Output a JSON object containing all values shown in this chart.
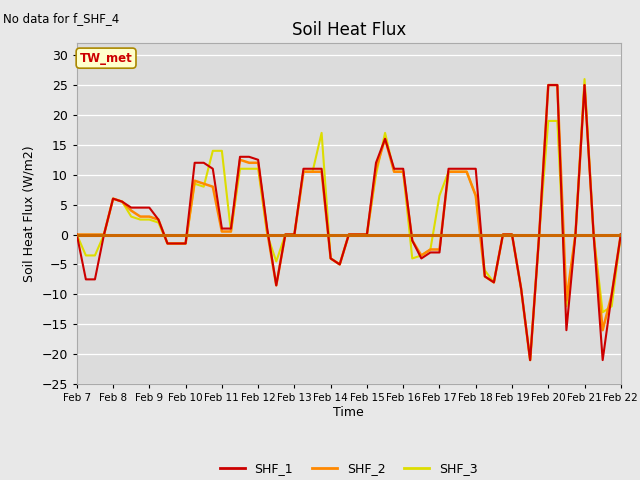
{
  "title": "Soil Heat Flux",
  "ylabel": "Soil Heat Flux (W/m2)",
  "xlabel": "Time",
  "note": "No data for f_SHF_4",
  "tw_met_label": "TW_met",
  "ylim": [
    -25,
    32
  ],
  "yticks": [
    -25,
    -20,
    -15,
    -10,
    -5,
    0,
    5,
    10,
    15,
    20,
    25,
    30
  ],
  "x_labels": [
    "Feb 7",
    "Feb 8",
    "Feb 9",
    "Feb 10",
    "Feb 11",
    "Feb 12",
    "Feb 13",
    "Feb 14",
    "Feb 15",
    "Feb 16",
    "Feb 17",
    "Feb 18",
    "Feb 19",
    "Feb 20",
    "Feb 21",
    "Feb 22"
  ],
  "shf1_color": "#CC0000",
  "shf2_color": "#FF8800",
  "shf3_color": "#DDDD00",
  "hline_color": "#CC6600",
  "bg_color": "#E8E8E8",
  "plot_bg_color": "#DCDCDC",
  "legend_labels": [
    "SHF_1",
    "SHF_2",
    "SHF_3"
  ],
  "shf1_x": [
    0,
    0.25,
    0.5,
    0.75,
    1.0,
    1.25,
    1.5,
    1.75,
    2.0,
    2.25,
    2.5,
    2.75,
    3.0,
    3.25,
    3.5,
    3.75,
    4.0,
    4.25,
    4.5,
    4.75,
    5.0,
    5.25,
    5.5,
    5.75,
    6.0,
    6.25,
    6.5,
    6.75,
    7.0,
    7.25,
    7.5,
    7.75,
    8.0,
    8.25,
    8.5,
    8.75,
    9.0,
    9.25,
    9.5,
    9.75,
    10.0,
    10.25,
    10.5,
    10.75,
    11.0,
    11.25,
    11.5,
    11.75,
    12.0,
    12.25,
    12.5,
    12.75,
    13.0,
    13.25,
    13.5,
    13.75,
    14.0,
    14.25,
    14.5,
    14.75,
    15.0
  ],
  "shf1_y": [
    0,
    -7.5,
    -7.5,
    0,
    6,
    5.5,
    4.5,
    4.5,
    4.5,
    2.5,
    -1.5,
    -1.5,
    -1.5,
    12,
    12,
    11,
    1,
    1,
    13,
    13,
    12.5,
    1,
    -8.5,
    0,
    0,
    11,
    11,
    11,
    -4,
    -5,
    0,
    0,
    0,
    12,
    16,
    11,
    11,
    -1,
    -4,
    -3,
    -3,
    11,
    11,
    11,
    11,
    -7,
    -8,
    0,
    0,
    -9,
    -21,
    0,
    25,
    25,
    -16,
    0,
    25,
    0,
    -21,
    -10,
    0
  ],
  "shf2_x": [
    0,
    0.25,
    0.5,
    0.75,
    1.0,
    1.25,
    1.5,
    1.75,
    2.0,
    2.25,
    2.5,
    2.75,
    3.0,
    3.25,
    3.5,
    3.75,
    4.0,
    4.25,
    4.5,
    4.75,
    5.0,
    5.25,
    5.5,
    5.75,
    6.0,
    6.25,
    6.5,
    6.75,
    7.0,
    7.25,
    7.5,
    7.75,
    8.0,
    8.25,
    8.5,
    8.75,
    9.0,
    9.25,
    9.5,
    9.75,
    10.0,
    10.25,
    10.5,
    10.75,
    11.0,
    11.25,
    11.5,
    11.75,
    12.0,
    12.25,
    12.5,
    12.75,
    13.0,
    13.25,
    13.5,
    13.75,
    14.0,
    14.25,
    14.5,
    14.75,
    15.0
  ],
  "shf2_y": [
    0,
    0,
    0,
    0,
    6,
    5.5,
    4,
    3,
    3,
    2.5,
    -1.5,
    -1.5,
    -1.5,
    9,
    8.5,
    8,
    0.5,
    0.5,
    12.5,
    12,
    12,
    0.5,
    -8.5,
    0,
    0,
    10.5,
    10.5,
    10.5,
    -4,
    -5,
    0,
    0,
    0,
    11,
    16,
    10.5,
    10.5,
    -1,
    -3.5,
    -2.5,
    -2.5,
    10.5,
    10.5,
    10.5,
    6.5,
    -7,
    -8,
    0,
    0,
    -9,
    -21,
    0,
    25,
    25,
    -11,
    0,
    25,
    0,
    -16,
    -10,
    0
  ],
  "shf3_x": [
    0,
    0.25,
    0.5,
    0.75,
    1.0,
    1.25,
    1.5,
    1.75,
    2.0,
    2.25,
    2.5,
    2.75,
    3.0,
    3.25,
    3.5,
    3.75,
    4.0,
    4.25,
    4.5,
    4.75,
    5.0,
    5.25,
    5.5,
    5.75,
    6.0,
    6.25,
    6.5,
    6.75,
    7.0,
    7.25,
    7.5,
    7.75,
    8.0,
    8.25,
    8.5,
    8.75,
    9.0,
    9.25,
    9.5,
    9.75,
    10.0,
    10.25,
    10.5,
    10.75,
    11.0,
    11.25,
    11.5,
    11.75,
    12.0,
    12.25,
    12.5,
    12.75,
    13.0,
    13.25,
    13.5,
    13.75,
    14.0,
    14.25,
    14.5,
    14.75,
    15.0
  ],
  "shf3_y": [
    0,
    -3.5,
    -3.5,
    0,
    6,
    5.5,
    3,
    2.5,
    2.5,
    2,
    -1.5,
    -1.5,
    -1.5,
    8.5,
    8,
    14,
    14,
    0.5,
    11,
    11,
    11,
    0,
    -4.5,
    0,
    0,
    10.5,
    10.5,
    17,
    -4,
    -5,
    0,
    0,
    0,
    10,
    17,
    10.5,
    10.5,
    -4,
    -3.5,
    -2.5,
    6.5,
    10.5,
    10.5,
    10.5,
    6.5,
    -6,
    -8,
    0,
    0,
    -9,
    -21,
    0,
    19,
    19,
    -12,
    0,
    26,
    0,
    -13,
    -12,
    0
  ]
}
